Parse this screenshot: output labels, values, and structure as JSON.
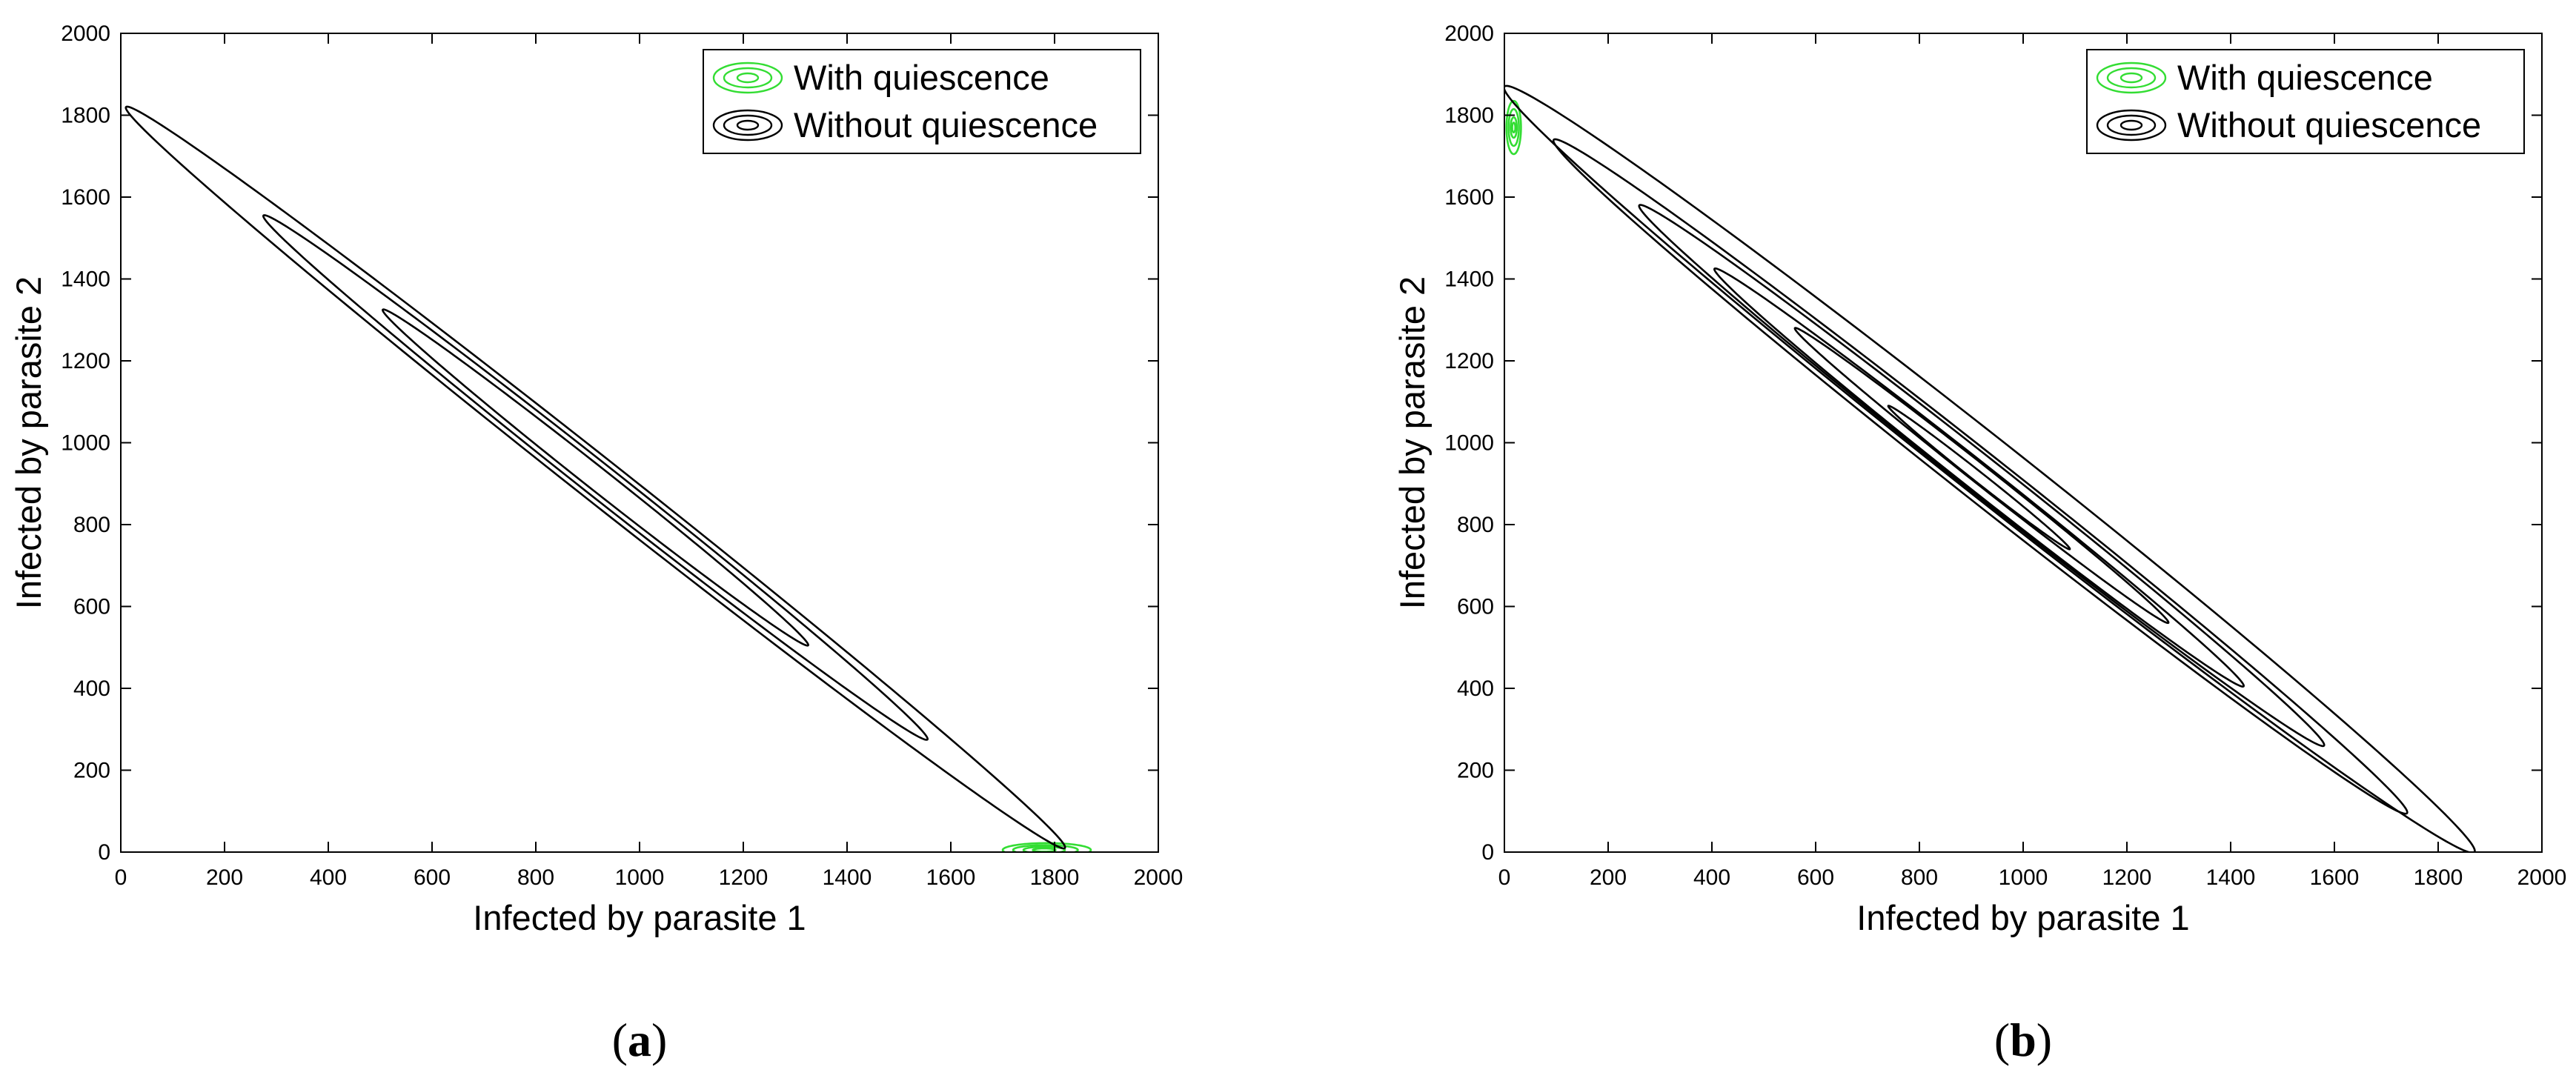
{
  "chart_data": [
    {
      "type": "contour",
      "panel_label": "a",
      "xlabel": "Infected by parasite 1",
      "ylabel": "Infected by parasite 2",
      "xlim": [
        0,
        2000
      ],
      "ylim": [
        0,
        2000
      ],
      "xticks": [
        0,
        200,
        400,
        600,
        800,
        1000,
        1200,
        1400,
        1600,
        1800,
        2000
      ],
      "yticks": [
        0,
        200,
        400,
        600,
        800,
        1000,
        1200,
        1400,
        1600,
        1800,
        2000
      ],
      "legend_position": "top-right",
      "grid": false,
      "series": [
        {
          "name": "With quiescence",
          "color": "#33dd33",
          "center": [
            1780,
            5
          ],
          "levels": [
            {
              "x_extent": [
                1700,
                1870
              ],
              "y_extent": [
                -12,
                22
              ]
            },
            {
              "x_extent": [
                1720,
                1845
              ],
              "y_extent": [
                -7,
                17
              ]
            },
            {
              "x_extent": [
                1740,
                1820
              ],
              "y_extent": [
                -3,
                13
              ]
            },
            {
              "x_extent": [
                1758,
                1802
              ],
              "y_extent": [
                1,
                9
              ]
            }
          ]
        },
        {
          "name": "Without quiescence",
          "color": "#000000",
          "center": [
            915,
            915
          ],
          "levels": [
            {
              "major_axis_ends": [
                [
                  10,
                  1820
                ],
                [
                  1820,
                  10
                ]
              ],
              "minor_half_width": 42
            },
            {
              "major_axis_ends": [
                [
                  275,
                  1555
                ],
                [
                  1555,
                  275
                ]
              ],
              "minor_half_width": 32
            },
            {
              "major_axis_ends": [
                [
                  505,
                  1325
                ],
                [
                  1325,
                  505
                ]
              ],
              "minor_half_width": 22
            }
          ]
        }
      ]
    },
    {
      "type": "contour",
      "panel_label": "b",
      "xlabel": "Infected by parasite 1",
      "ylabel": "Infected by parasite 2",
      "xlim": [
        0,
        2000
      ],
      "ylim": [
        0,
        2000
      ],
      "xticks": [
        0,
        200,
        400,
        600,
        800,
        1000,
        1200,
        1400,
        1600,
        1800,
        2000
      ],
      "yticks": [
        0,
        200,
        400,
        600,
        800,
        1000,
        1200,
        1400,
        1600,
        1800,
        2000
      ],
      "legend_position": "top-right",
      "grid": false,
      "series": [
        {
          "name": "With quiescence",
          "color": "#33dd33",
          "center": [
            18,
            1770
          ],
          "levels": [
            {
              "x_extent": [
                4,
                32
              ],
              "y_extent": [
                1705,
                1835
              ]
            },
            {
              "x_extent": [
                8,
                28
              ],
              "y_extent": [
                1725,
                1815
              ]
            },
            {
              "x_extent": [
                12,
                24
              ],
              "y_extent": [
                1745,
                1795
              ]
            },
            {
              "x_extent": [
                15,
                21
              ],
              "y_extent": [
                1758,
                1782
              ]
            }
          ]
        },
        {
          "name": "Without quiescence",
          "color": "#000000",
          "center": [
            935,
            935
          ],
          "levels": [
            {
              "major_axis_ends": [
                [
                  0,
                  1870
                ],
                [
                  1870,
                  0
                ]
              ],
              "minor_half_width": 58
            },
            {
              "major_axis_ends": [
                [
                  95,
                  1740
                ],
                [
                  1740,
                  95
                ]
              ],
              "minor_half_width": 46
            },
            {
              "major_axis_ends": [
                [
                  260,
                  1580
                ],
                [
                  1580,
                  260
                ]
              ],
              "minor_half_width": 36
            },
            {
              "major_axis_ends": [
                [
                  405,
                  1425
                ],
                [
                  1425,
                  405
                ]
              ],
              "minor_half_width": 27
            },
            {
              "major_axis_ends": [
                [
                  560,
                  1280
                ],
                [
                  1280,
                  560
                ]
              ],
              "minor_half_width": 18
            },
            {
              "major_axis_ends": [
                [
                  740,
                  1090
                ],
                [
                  1090,
                  740
                ]
              ],
              "minor_half_width": 10
            }
          ]
        }
      ]
    }
  ]
}
